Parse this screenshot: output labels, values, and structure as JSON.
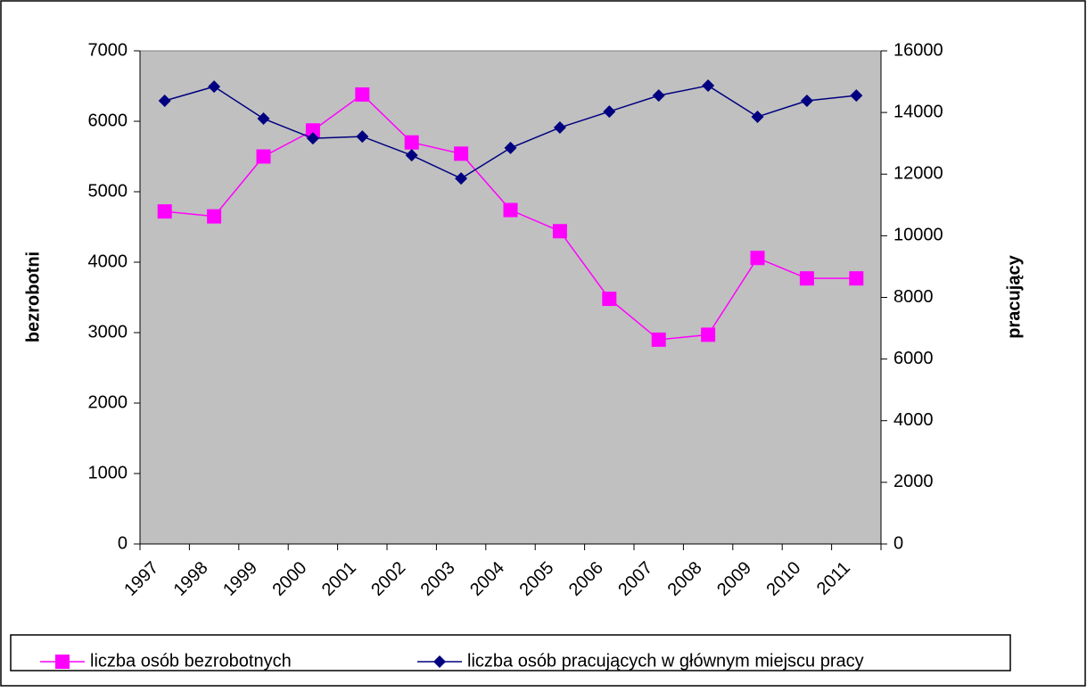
{
  "chart_data": {
    "type": "line",
    "categories": [
      "1997",
      "1998",
      "1999",
      "2000",
      "2001",
      "2002",
      "2003",
      "2004",
      "2005",
      "2006",
      "2007",
      "2008",
      "2009",
      "2010",
      "2011"
    ],
    "series": [
      {
        "name": "liczba osób bezrobotnych",
        "color": "#ff00ff",
        "marker": "square",
        "values": [
          4720,
          4650,
          5500,
          5870,
          6380,
          5700,
          5540,
          4740,
          4440,
          3480,
          2900,
          2970,
          4060,
          3770,
          3770
        ]
      },
      {
        "name": "liczba osób pracujących w głównym miejscu pracy",
        "color": "#000080",
        "marker": "diamond",
        "axis": "y2",
        "values": [
          14380,
          14840,
          13800,
          13160,
          13220,
          12610,
          11860,
          12850,
          13510,
          14030,
          14550,
          14870,
          13860,
          14380,
          14550
        ]
      }
    ],
    "ylabel": "bezrobotni",
    "y2label": "pracujący",
    "ylim": [
      0,
      7000
    ],
    "yticks": [
      0,
      1000,
      2000,
      3000,
      4000,
      5000,
      6000,
      7000
    ],
    "y2lim": [
      0,
      16000
    ],
    "y2ticks": [
      0,
      2000,
      4000,
      6000,
      8000,
      10000,
      12000,
      14000,
      16000
    ],
    "grid": false,
    "legend": "bottom",
    "plot_background": "#c0c0c0"
  }
}
